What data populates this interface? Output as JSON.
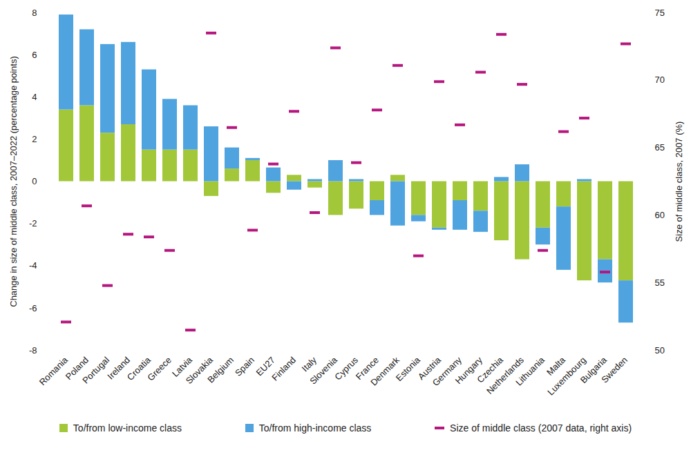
{
  "chart_data": {
    "type": "bar",
    "stacked": true,
    "grid": false,
    "categories": [
      "Romania",
      "Poland",
      "Portugal",
      "Ireland",
      "Croatia",
      "Greece",
      "Latvia",
      "Slovakia",
      "Belgium",
      "Spain",
      "EU27",
      "Finland",
      "Italy",
      "Slovenia",
      "Cyprus",
      "France",
      "Denmark",
      "Estonia",
      "Austria",
      "Germany",
      "Hungary",
      "Czechia",
      "Netherlands",
      "Lithuania",
      "Malta",
      "Luxembourg",
      "Bulgaria",
      "Sweden"
    ],
    "ylabel": "Change in size of middle class, 2007–2022 (percentage points)",
    "y2label": "Size of middle class, 2007 (%)",
    "ylim": [
      -8,
      8
    ],
    "yticks": [
      -8,
      -6,
      -4,
      -2,
      0,
      2,
      4,
      6,
      8
    ],
    "y2lim": [
      50,
      75
    ],
    "y2ticks": [
      50,
      55,
      60,
      65,
      70,
      75
    ],
    "series": [
      {
        "name": "To/from low-income class",
        "color": "#a2c83a",
        "values": [
          3.4,
          3.6,
          2.3,
          2.7,
          1.5,
          1.5,
          1.5,
          -0.7,
          0.6,
          1.0,
          -0.55,
          0.3,
          -0.3,
          -1.6,
          -1.3,
          -0.9,
          0.3,
          -1.6,
          -2.2,
          -0.9,
          -1.4,
          -2.8,
          -3.7,
          -2.2,
          -1.2,
          -4.7,
          -3.7,
          -4.7
        ]
      },
      {
        "name": "To/from high-income class",
        "color": "#4fa3df",
        "values": [
          4.5,
          3.6,
          4.2,
          3.9,
          3.8,
          2.4,
          2.1,
          2.6,
          1.0,
          0.1,
          0.65,
          -0.4,
          0.1,
          1.0,
          0.1,
          -0.7,
          -2.1,
          -0.3,
          -0.1,
          -1.4,
          -1.0,
          0.2,
          0.8,
          -0.8,
          -3.0,
          0.1,
          -1.1,
          -2.0
        ]
      },
      {
        "name": "Size of middle class (2007 data, right axis)",
        "color": "#b5177f",
        "axis": "y2",
        "type": "scatter",
        "marker": "dash",
        "values": [
          52.1,
          60.7,
          54.8,
          58.6,
          58.4,
          57.4,
          51.5,
          73.5,
          66.5,
          58.9,
          63.8,
          67.7,
          60.2,
          72.4,
          63.9,
          67.8,
          71.1,
          57.0,
          69.9,
          66.7,
          70.6,
          73.4,
          69.7,
          57.4,
          66.2,
          67.2,
          55.8,
          72.7
        ]
      }
    ]
  }
}
